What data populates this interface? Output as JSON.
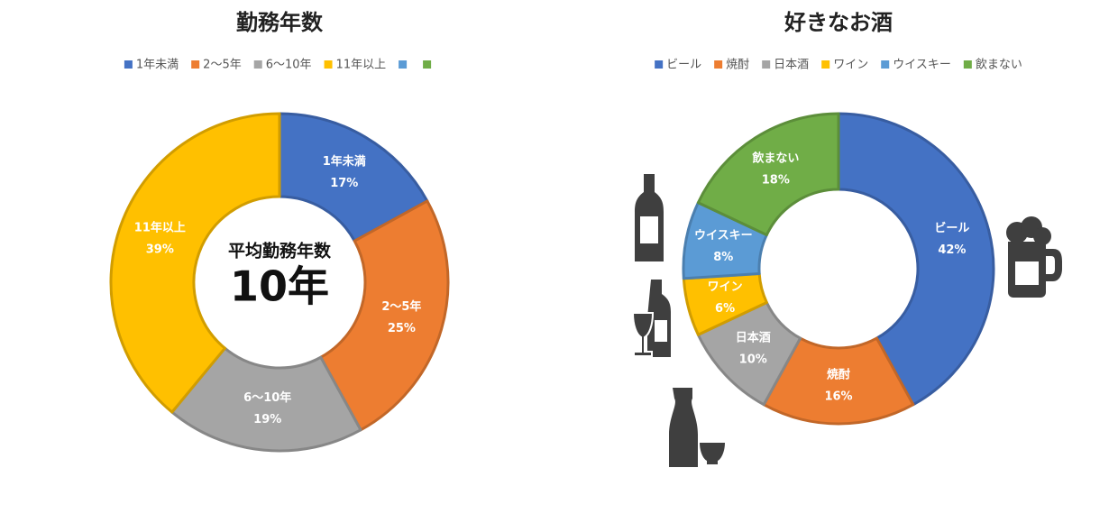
{
  "chart_data": [
    {
      "type": "donut",
      "title": "勤務年数",
      "categories": [
        "1年未満",
        "2〜5年",
        "6〜10年",
        "11年以上",
        null,
        null
      ],
      "values": [
        17,
        25,
        19,
        39,
        null,
        null
      ],
      "value_labels": [
        "17%",
        "25%",
        "19%",
        "39%",
        null,
        null
      ],
      "colors": [
        "#4472c4",
        "#ed7d31",
        "#a5a5a5",
        "#ffc000",
        "#5b9bd5",
        "#70ad47"
      ],
      "center_label": "平均勤務年数",
      "center_value": "10年"
    },
    {
      "type": "donut",
      "title": "好きなお酒",
      "categories": [
        "ビール",
        "焼酎",
        "日本酒",
        "ワイン",
        "ウイスキー",
        "飲まない"
      ],
      "values": [
        42,
        16,
        10,
        6,
        8,
        18
      ],
      "value_labels": [
        "42%",
        "16%",
        "10%",
        "6%",
        "8%",
        "18%"
      ],
      "colors": [
        "#4472c4",
        "#ed7d31",
        "#a5a5a5",
        "#ffc000",
        "#5b9bd5",
        "#70ad47"
      ]
    }
  ]
}
